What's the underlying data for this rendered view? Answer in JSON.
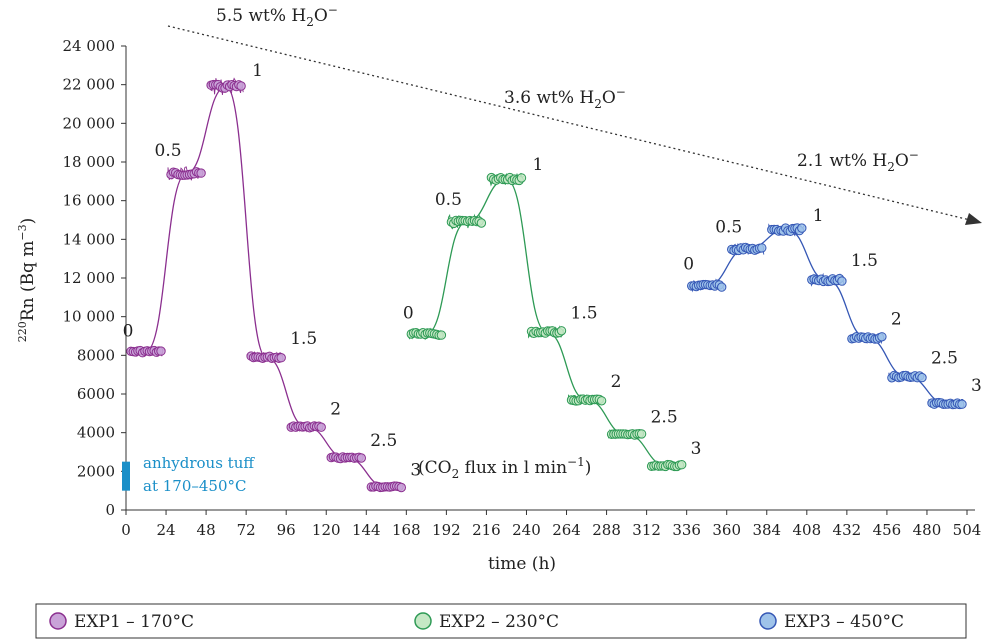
{
  "chart_data": {
    "type": "line",
    "xlabel": "time (h)",
    "ylabel_main": "Rn (Bq m",
    "ylabel_sup_pre": "220",
    "ylabel_sup_post": "−3",
    "ylabel_close": ")",
    "xlim": [
      0,
      504
    ],
    "ylim": [
      0,
      24000
    ],
    "x_ticks": [
      0,
      24,
      48,
      72,
      96,
      120,
      144,
      168,
      192,
      216,
      240,
      264,
      288,
      312,
      336,
      360,
      384,
      408,
      432,
      456,
      480,
      504
    ],
    "y_ticks": [
      0,
      2000,
      4000,
      6000,
      8000,
      10000,
      12000,
      14000,
      16000,
      18000,
      20000,
      22000,
      24000
    ],
    "y_tick_labels": [
      "0",
      "2000",
      "4000",
      "6000",
      "8000",
      "10 000",
      "12 000",
      "14 000",
      "16 000",
      "18 000",
      "20 000",
      "22 000",
      "24 000"
    ],
    "series": [
      {
        "name": "EXP1 – 170°C",
        "color": "#8b2f8f",
        "fill": "#c9a3d8",
        "plateaus": [
          {
            "flux": "0",
            "x_start": 0,
            "x_end": 24,
            "value": 8200
          },
          {
            "flux": "0.5",
            "x_start": 24,
            "x_end": 48,
            "value": 17400
          },
          {
            "flux": "1",
            "x_start": 48,
            "x_end": 72,
            "value": 21900
          },
          {
            "flux": "1.5",
            "x_start": 72,
            "x_end": 96,
            "value": 7900
          },
          {
            "flux": "2",
            "x_start": 96,
            "x_end": 120,
            "value": 4300
          },
          {
            "flux": "2.5",
            "x_start": 120,
            "x_end": 144,
            "value": 2700
          },
          {
            "flux": "3",
            "x_start": 144,
            "x_end": 168,
            "value": 1200
          }
        ]
      },
      {
        "name": "EXP2 – 230°C",
        "color": "#2e9a55",
        "fill": "#c5e8c5",
        "plateaus": [
          {
            "flux": "0",
            "x_start": 168,
            "x_end": 192,
            "value": 9100
          },
          {
            "flux": "0.5",
            "x_start": 192,
            "x_end": 216,
            "value": 14900
          },
          {
            "flux": "1",
            "x_start": 216,
            "x_end": 240,
            "value": 17100
          },
          {
            "flux": "1.5",
            "x_start": 240,
            "x_end": 264,
            "value": 9200
          },
          {
            "flux": "2",
            "x_start": 264,
            "x_end": 288,
            "value": 5700
          },
          {
            "flux": "2.5",
            "x_start": 288,
            "x_end": 312,
            "value": 3900
          },
          {
            "flux": "3",
            "x_start": 312,
            "x_end": 336,
            "value": 2300
          }
        ]
      },
      {
        "name": "EXP3 – 450°C",
        "color": "#3557b5",
        "fill": "#9fc3ea",
        "plateaus": [
          {
            "flux": "0",
            "x_start": 336,
            "x_end": 360,
            "value": 11600
          },
          {
            "flux": "0.5",
            "x_start": 360,
            "x_end": 384,
            "value": 13500
          },
          {
            "flux": "1",
            "x_start": 384,
            "x_end": 408,
            "value": 14500
          },
          {
            "flux": "1.5",
            "x_start": 408,
            "x_end": 432,
            "value": 11900
          },
          {
            "flux": "2",
            "x_start": 432,
            "x_end": 456,
            "value": 8900
          },
          {
            "flux": "2.5",
            "x_start": 456,
            "x_end": 480,
            "value": 6900
          },
          {
            "flux": "3",
            "x_start": 480,
            "x_end": 504,
            "value": 5500
          }
        ]
      }
    ],
    "anhydrous_tuff": {
      "label_line1": "anhydrous tuff",
      "label_line2": "at 170–450°C",
      "y_range": [
        1000,
        2500
      ],
      "color": "#1a8fc8"
    },
    "annotations": {
      "flux_note_pre": "(CO",
      "flux_note_sub": "2",
      "flux_note_post": " flux in l min",
      "flux_note_sup": "−1",
      "flux_note_close": ")",
      "water": [
        {
          "pre": "5.5 wt% H",
          "sub": "2",
          "post": "O",
          "sup": "−"
        },
        {
          "pre": "3.6 wt% H",
          "sub": "2",
          "post": "O",
          "sup": "−"
        },
        {
          "pre": "2.1 wt% H",
          "sub": "2",
          "post": "O",
          "sup": "−"
        }
      ]
    },
    "legend_position": "bottom"
  }
}
